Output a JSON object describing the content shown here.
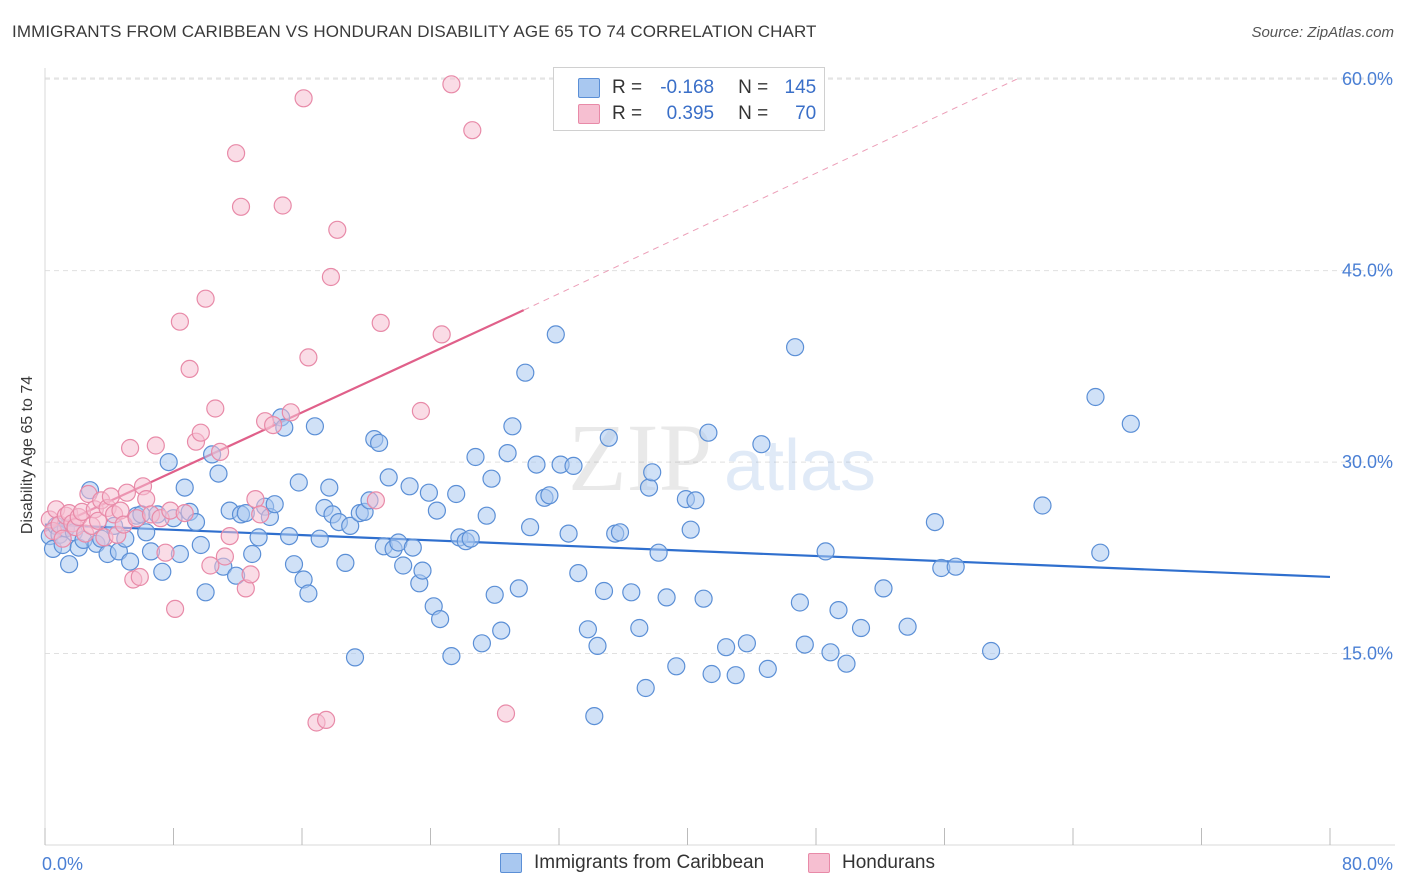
{
  "header": {
    "title": "IMMIGRANTS FROM CARIBBEAN VS HONDURAN DISABILITY AGE 65 TO 74 CORRELATION CHART",
    "source": "Source: ZipAtlas.com"
  },
  "watermark": {
    "part1": "ZIP",
    "part2": "atlas"
  },
  "legend": {
    "rows": [
      {
        "r_label": "R =",
        "r_value": "-0.168",
        "n_label": "N =",
        "n_value": "145"
      },
      {
        "r_label": "R =",
        "r_value": "0.395",
        "n_label": "N =",
        "n_value": "70"
      }
    ]
  },
  "bottom_legend": {
    "items": [
      {
        "label": "Immigrants from Caribbean"
      },
      {
        "label": "Hondurans"
      }
    ]
  },
  "colors": {
    "blue_fill": "#a9c8f0",
    "blue_stroke": "#5b8fd6",
    "blue_line": "#2f6fce",
    "pink_fill": "#f6bfd1",
    "pink_stroke": "#e88aa8",
    "pink_line": "#e0608a",
    "grid": "#e0e0e0",
    "tick_text": "#4a7fd4"
  },
  "chart_data": {
    "type": "scatter",
    "ylabel": "Disability Age 65 to 74",
    "xlim": [
      0,
      80
    ],
    "ylim": [
      0,
      61.5
    ],
    "x_tick_labels": [
      "0.0%",
      "80.0%"
    ],
    "y_ticks": [
      {
        "value": 15,
        "label": "15.0%"
      },
      {
        "value": 30,
        "label": "30.0%"
      },
      {
        "value": 45,
        "label": "45.0%"
      },
      {
        "value": 60,
        "label": "60.0%"
      }
    ],
    "series": [
      {
        "name": "Immigrants from Caribbean",
        "color": "blue",
        "trend": {
          "x": [
            0,
            80
          ],
          "y": [
            25.1,
            21.0
          ],
          "dashed_to": null
        },
        "points": [
          [
            0.3,
            24.2
          ],
          [
            0.5,
            23.2
          ],
          [
            0.7,
            25.0
          ],
          [
            0.9,
            24.3
          ],
          [
            1.1,
            23.5
          ],
          [
            1.3,
            24.8
          ],
          [
            1.5,
            22.0
          ],
          [
            1.8,
            24.5
          ],
          [
            2.1,
            23.3
          ],
          [
            2.4,
            23.9
          ],
          [
            2.8,
            27.8
          ],
          [
            3.2,
            23.6
          ],
          [
            3.5,
            24.0
          ],
          [
            3.9,
            22.8
          ],
          [
            4.3,
            25.0
          ],
          [
            4.6,
            23.0
          ],
          [
            5.0,
            24.0
          ],
          [
            5.3,
            22.2
          ],
          [
            5.7,
            25.8
          ],
          [
            6.0,
            25.9
          ],
          [
            6.3,
            24.5
          ],
          [
            6.6,
            23.0
          ],
          [
            7.0,
            25.9
          ],
          [
            7.3,
            21.4
          ],
          [
            7.7,
            30.0
          ],
          [
            8.0,
            25.6
          ],
          [
            8.4,
            22.8
          ],
          [
            8.7,
            28.0
          ],
          [
            9.0,
            26.1
          ],
          [
            9.4,
            25.3
          ],
          [
            9.7,
            23.5
          ],
          [
            10.0,
            19.8
          ],
          [
            10.4,
            30.6
          ],
          [
            10.8,
            29.1
          ],
          [
            11.1,
            21.8
          ],
          [
            11.5,
            26.2
          ],
          [
            11.9,
            21.1
          ],
          [
            12.2,
            25.9
          ],
          [
            12.5,
            26.0
          ],
          [
            12.9,
            22.8
          ],
          [
            13.3,
            24.1
          ],
          [
            13.7,
            26.5
          ],
          [
            14.0,
            25.7
          ],
          [
            14.3,
            26.7
          ],
          [
            14.7,
            33.5
          ],
          [
            14.9,
            32.7
          ],
          [
            15.2,
            24.2
          ],
          [
            15.5,
            22.0
          ],
          [
            15.8,
            28.4
          ],
          [
            16.1,
            20.8
          ],
          [
            16.4,
            19.7
          ],
          [
            16.8,
            32.8
          ],
          [
            17.1,
            24.0
          ],
          [
            17.4,
            26.4
          ],
          [
            17.7,
            28.0
          ],
          [
            17.9,
            25.9
          ],
          [
            18.3,
            25.3
          ],
          [
            18.7,
            22.1
          ],
          [
            19.0,
            25.0
          ],
          [
            19.3,
            14.7
          ],
          [
            19.6,
            26.0
          ],
          [
            19.9,
            26.1
          ],
          [
            20.2,
            27.0
          ],
          [
            20.5,
            31.8
          ],
          [
            20.8,
            31.5
          ],
          [
            21.1,
            23.4
          ],
          [
            21.4,
            28.8
          ],
          [
            21.7,
            23.2
          ],
          [
            22.0,
            23.7
          ],
          [
            22.3,
            21.9
          ],
          [
            22.7,
            28.1
          ],
          [
            22.9,
            23.3
          ],
          [
            23.3,
            20.5
          ],
          [
            23.5,
            21.5
          ],
          [
            23.9,
            27.6
          ],
          [
            24.2,
            18.7
          ],
          [
            24.4,
            26.2
          ],
          [
            24.6,
            17.7
          ],
          [
            25.3,
            14.8
          ],
          [
            25.6,
            27.5
          ],
          [
            25.8,
            24.1
          ],
          [
            26.2,
            23.8
          ],
          [
            26.5,
            24.0
          ],
          [
            26.8,
            30.4
          ],
          [
            27.2,
            15.8
          ],
          [
            27.5,
            25.8
          ],
          [
            27.8,
            28.7
          ],
          [
            28.0,
            19.6
          ],
          [
            28.4,
            16.8
          ],
          [
            28.8,
            30.7
          ],
          [
            29.1,
            32.8
          ],
          [
            29.5,
            20.1
          ],
          [
            29.9,
            37.0
          ],
          [
            30.2,
            24.9
          ],
          [
            30.6,
            29.8
          ],
          [
            31.1,
            27.2
          ],
          [
            31.4,
            27.4
          ],
          [
            31.8,
            40.0
          ],
          [
            32.1,
            29.8
          ],
          [
            32.6,
            24.4
          ],
          [
            32.9,
            29.7
          ],
          [
            33.2,
            21.3
          ],
          [
            33.8,
            16.9
          ],
          [
            34.2,
            10.1
          ],
          [
            34.4,
            15.6
          ],
          [
            34.8,
            19.9
          ],
          [
            35.1,
            31.9
          ],
          [
            35.5,
            24.4
          ],
          [
            35.8,
            24.5
          ],
          [
            36.5,
            19.8
          ],
          [
            37.0,
            17.0
          ],
          [
            37.4,
            12.3
          ],
          [
            37.6,
            28.0
          ],
          [
            37.8,
            29.2
          ],
          [
            38.2,
            22.9
          ],
          [
            38.7,
            19.4
          ],
          [
            39.3,
            14.0
          ],
          [
            39.9,
            27.1
          ],
          [
            40.2,
            24.7
          ],
          [
            40.5,
            27.0
          ],
          [
            41.0,
            19.3
          ],
          [
            41.3,
            32.3
          ],
          [
            41.5,
            13.4
          ],
          [
            42.4,
            15.5
          ],
          [
            43.0,
            13.3
          ],
          [
            43.7,
            15.8
          ],
          [
            44.6,
            31.4
          ],
          [
            45.0,
            13.8
          ],
          [
            46.7,
            39.0
          ],
          [
            47.0,
            19.0
          ],
          [
            47.3,
            15.7
          ],
          [
            48.6,
            23.0
          ],
          [
            48.9,
            15.1
          ],
          [
            49.4,
            18.4
          ],
          [
            49.9,
            14.2
          ],
          [
            50.8,
            17.0
          ],
          [
            52.2,
            20.1
          ],
          [
            53.7,
            17.1
          ],
          [
            55.4,
            25.3
          ],
          [
            55.8,
            21.7
          ],
          [
            56.7,
            21.8
          ],
          [
            58.9,
            15.2
          ],
          [
            62.1,
            26.6
          ],
          [
            65.4,
            35.1
          ],
          [
            65.7,
            22.9
          ],
          [
            67.6,
            33.0
          ]
        ]
      },
      {
        "name": "Hondurans",
        "color": "pink",
        "trend": {
          "x": [
            0,
            29.8
          ],
          "y": [
            24.6,
            41.9
          ],
          "dashed_to": [
            60.5,
            60.0
          ]
        },
        "points": [
          [
            0.3,
            25.5
          ],
          [
            0.5,
            24.6
          ],
          [
            0.7,
            26.3
          ],
          [
            0.9,
            25.1
          ],
          [
            1.1,
            24.0
          ],
          [
            1.3,
            25.8
          ],
          [
            1.5,
            26.0
          ],
          [
            1.7,
            25.2
          ],
          [
            1.9,
            24.9
          ],
          [
            2.1,
            25.7
          ],
          [
            2.3,
            26.1
          ],
          [
            2.5,
            24.4
          ],
          [
            2.7,
            27.5
          ],
          [
            2.9,
            25.0
          ],
          [
            3.1,
            26.3
          ],
          [
            3.3,
            25.4
          ],
          [
            3.5,
            27.0
          ],
          [
            3.7,
            24.1
          ],
          [
            3.9,
            26.4
          ],
          [
            4.1,
            27.3
          ],
          [
            4.3,
            25.9
          ],
          [
            4.5,
            24.3
          ],
          [
            4.7,
            26.2
          ],
          [
            4.9,
            25.1
          ],
          [
            5.1,
            27.6
          ],
          [
            5.3,
            31.1
          ],
          [
            5.5,
            20.8
          ],
          [
            5.7,
            25.6
          ],
          [
            5.9,
            21.0
          ],
          [
            6.1,
            28.1
          ],
          [
            6.3,
            27.1
          ],
          [
            6.6,
            25.9
          ],
          [
            6.9,
            31.3
          ],
          [
            7.2,
            25.6
          ],
          [
            7.5,
            22.9
          ],
          [
            7.8,
            26.2
          ],
          [
            8.1,
            18.5
          ],
          [
            8.4,
            41.0
          ],
          [
            8.7,
            26.0
          ],
          [
            9.0,
            37.3
          ],
          [
            9.4,
            31.6
          ],
          [
            9.7,
            32.3
          ],
          [
            10.0,
            42.8
          ],
          [
            10.3,
            21.9
          ],
          [
            10.6,
            34.2
          ],
          [
            10.9,
            30.8
          ],
          [
            11.2,
            22.6
          ],
          [
            11.5,
            24.2
          ],
          [
            11.9,
            54.2
          ],
          [
            12.2,
            50.0
          ],
          [
            12.5,
            20.1
          ],
          [
            12.8,
            21.2
          ],
          [
            13.1,
            27.1
          ],
          [
            13.4,
            25.9
          ],
          [
            13.7,
            33.2
          ],
          [
            14.2,
            32.9
          ],
          [
            14.8,
            50.1
          ],
          [
            15.3,
            33.9
          ],
          [
            16.1,
            58.5
          ],
          [
            16.4,
            38.2
          ],
          [
            16.9,
            9.6
          ],
          [
            17.5,
            9.8
          ],
          [
            17.8,
            44.5
          ],
          [
            18.2,
            48.2
          ],
          [
            20.6,
            27.0
          ],
          [
            20.9,
            40.9
          ],
          [
            23.4,
            34.0
          ],
          [
            24.7,
            40.0
          ],
          [
            25.3,
            59.6
          ],
          [
            26.6,
            56.0
          ],
          [
            28.7,
            10.3
          ]
        ]
      }
    ]
  }
}
